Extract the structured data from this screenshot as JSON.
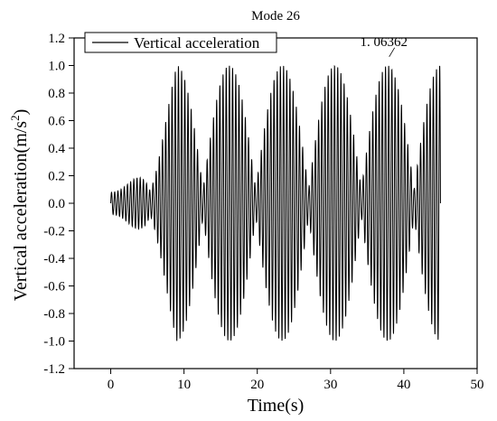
{
  "chart_data": {
    "type": "line",
    "title": "Mode 26",
    "xlabel": "Time(s)",
    "ylabel": "Vertical acceleration(m/s",
    "ylabel_sup": "2",
    "ylabel_close": ")",
    "xlim": [
      -5,
      50
    ],
    "ylim": [
      -1.2,
      1.2
    ],
    "x_ticks": [
      0,
      10,
      20,
      30,
      40,
      50
    ],
    "x_tick_labels": [
      "0",
      "10",
      "20",
      "30",
      "40",
      "50"
    ],
    "y_ticks": [
      -1.2,
      -1.0,
      -0.8,
      -0.6,
      -0.4,
      -0.2,
      0.0,
      0.2,
      0.4,
      0.6,
      0.8,
      1.0,
      1.2
    ],
    "y_tick_labels": [
      "-1.2",
      "-1.0",
      "-0.8",
      "-0.6",
      "-0.4",
      "-0.2",
      "0.0",
      "0.2",
      "0.4",
      "0.6",
      "0.8",
      "1.0",
      "1.2"
    ],
    "legend_position": "top-left",
    "grid": false,
    "line_color": "#000000",
    "series": [
      {
        "name": "Vertical acceleration",
        "signal": {
          "start": 0,
          "end": 45,
          "oscillation_frequency_hz": 2.3,
          "beat_period_s": 7.2,
          "first_peak_time_s": 9.0,
          "peak_amplitude": 1.0,
          "initial_amplitude": 0.08,
          "ramp_end_s": 9.0,
          "trough_amplitude": 0.1
        }
      }
    ],
    "annotations": [
      {
        "text": "1. 06362",
        "x": 38.0,
        "y": 1.06362
      }
    ]
  }
}
